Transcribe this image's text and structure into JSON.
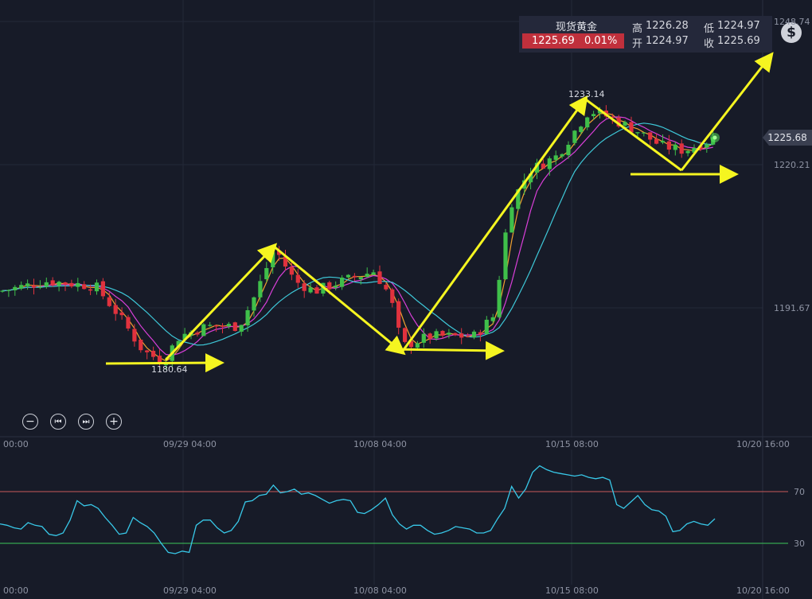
{
  "instrument": {
    "name": "现货黄金",
    "price": "1225.69",
    "change": "0.01%",
    "high_label": "高",
    "high": "1226.28",
    "low_label": "低",
    "low": "1224.97",
    "open_label": "开",
    "open": "1224.97",
    "close_label": "收",
    "close": "1225.69"
  },
  "toolbar": {
    "zoom_out": "−",
    "prev": "⏮",
    "next": "⏭",
    "zoom_in": "+",
    "currency_icon": "$"
  },
  "current_price_tag": "1225.68",
  "colors": {
    "up": "#3fbf4a",
    "down": "#e0323e",
    "ma_fast": "#f0a030",
    "ma_mid": "#d93fd8",
    "ma_slow": "#3ec8d8",
    "arrow": "#f5f520",
    "rsi": "#38c8e8",
    "rsi_high": "#c85a5a",
    "rsi_low": "#3ec85a"
  },
  "chart_data": [
    {
      "type": "candlestick",
      "price_axis_labels": [
        "1248.74",
        "1220.21",
        "1191.67"
      ],
      "x_tick_labels": [
        "00:00",
        "09/29 04:00",
        "10/08 04:00",
        "10/15 08:00",
        "10/20 16:00"
      ],
      "annotations": {
        "high_marker": "1233.14",
        "low_marker": "1180.64"
      },
      "key_swing_points": [
        {
          "label": "low",
          "price": 1180.64
        },
        {
          "label": "high",
          "price": 1203.6
        },
        {
          "label": "low",
          "price": 1183.7
        },
        {
          "label": "high",
          "price": 1233.14
        },
        {
          "label": "low",
          "price": 1219.0
        },
        {
          "label": "current",
          "price": 1225.68
        }
      ],
      "ma_lines": [
        "fast",
        "mid",
        "slow"
      ]
    },
    {
      "type": "line",
      "indicator": "RSI",
      "levels": [
        70,
        30
      ],
      "level_labels": [
        "70",
        "30"
      ],
      "x_tick_labels": [
        "00:00",
        "09/29 04:00",
        "10/08 04:00",
        "10/15 08:00",
        "10/20 16:00"
      ],
      "values": [
        45,
        44,
        42,
        41,
        46,
        44,
        43,
        37,
        36,
        38,
        48,
        63,
        59,
        60,
        57,
        50,
        44,
        37,
        38,
        50,
        46,
        43,
        38,
        30,
        23,
        22,
        24,
        23,
        44,
        48,
        48,
        42,
        38,
        40,
        47,
        62,
        63,
        67,
        68,
        75,
        69,
        70,
        72,
        68,
        69,
        67,
        64,
        61,
        63,
        64,
        63,
        54,
        53,
        56,
        60,
        65,
        52,
        45,
        41,
        44,
        44,
        40,
        37,
        38,
        40,
        43,
        42,
        41,
        38,
        38,
        40,
        49,
        57,
        74,
        65,
        72,
        85,
        90,
        87,
        85,
        84,
        83,
        82,
        83,
        81,
        80,
        81,
        79,
        60,
        57,
        62,
        67,
        60,
        56,
        55,
        51,
        39,
        40,
        45,
        47,
        45,
        44,
        49
      ]
    }
  ]
}
